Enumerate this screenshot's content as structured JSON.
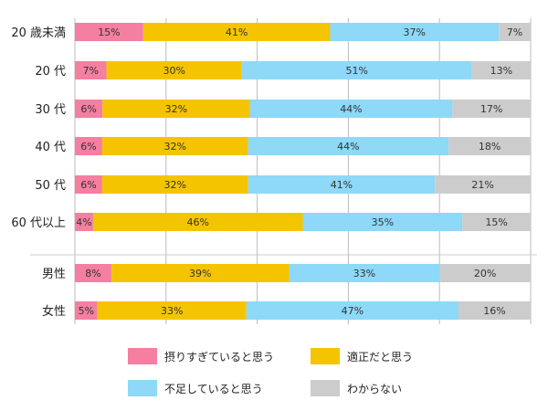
{
  "chart_data": {
    "type": "bar",
    "orientation": "horizontal",
    "stacked": true,
    "percent_axis": [
      0,
      100
    ],
    "gridlines": "vertical, every 20%",
    "legend_placement": "bottom",
    "categories": [
      "20 歳未満",
      "20 代",
      "30 代",
      "40 代",
      "50 代",
      "60 代以上",
      "男性",
      "女性"
    ],
    "series": [
      {
        "name": "摂りすぎていると思う",
        "color": "#f47fa0",
        "values": [
          15,
          7,
          6,
          6,
          6,
          4,
          8,
          5
        ]
      },
      {
        "name": "適正だと思う",
        "color": "#f5c400",
        "values": [
          41,
          30,
          32,
          32,
          32,
          46,
          39,
          33
        ]
      },
      {
        "name": "不足していると思う",
        "color": "#8ed8f8",
        "values": [
          37,
          51,
          44,
          44,
          41,
          35,
          33,
          47
        ]
      },
      {
        "name": "わからない",
        "color": "#cccccc",
        "values": [
          7,
          13,
          17,
          18,
          21,
          15,
          20,
          16
        ]
      }
    ],
    "data_labels": [
      [
        "15%",
        "41%",
        "37%",
        "7%"
      ],
      [
        "7%",
        "30%",
        "51%",
        "13%"
      ],
      [
        "6%",
        "32%",
        "44%",
        "17%"
      ],
      [
        "6%",
        "32%",
        "44%",
        "18%"
      ],
      [
        "6%",
        "32%",
        "41%",
        "21%"
      ],
      [
        "4%",
        "46%",
        "35%",
        "15%"
      ],
      [
        "8%",
        "39%",
        "33%",
        "20%"
      ],
      [
        "5%",
        "33%",
        "47%",
        "16%"
      ]
    ]
  }
}
